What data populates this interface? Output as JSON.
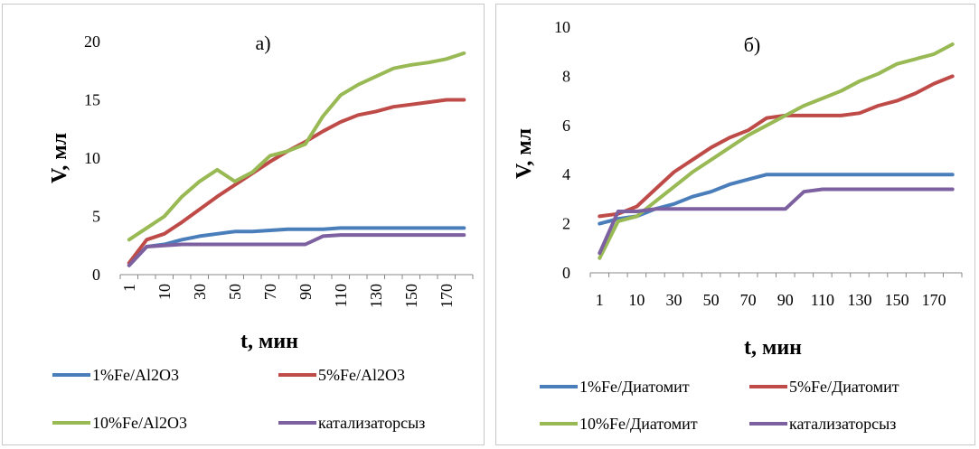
{
  "chart_data": [
    {
      "type": "line",
      "title": "а)",
      "xlabel": "t, мин",
      "ylabel": "V, мл",
      "ylim": [
        0,
        20
      ],
      "yticks": [
        0,
        5,
        10,
        15,
        20
      ],
      "x": [
        1,
        5,
        10,
        20,
        30,
        40,
        50,
        60,
        70,
        80,
        90,
        100,
        110,
        120,
        130,
        140,
        150,
        160,
        170,
        180
      ],
      "xtick_labels": [
        "1",
        "10",
        "30",
        "50",
        "70",
        "90",
        "110",
        "130",
        "150",
        "170"
      ],
      "xtick_orientation": "vertical",
      "legend_position": "bottom",
      "series": [
        {
          "name": "1%Fe/Al2O3",
          "color": "#4a7ebb",
          "values": [
            0.8,
            2.4,
            2.6,
            3.0,
            3.3,
            3.5,
            3.7,
            3.7,
            3.8,
            3.9,
            3.9,
            3.9,
            4.0,
            4.0,
            4.0,
            4.0,
            4.0,
            4.0,
            4.0,
            4.0
          ]
        },
        {
          "name": "5%Fe/Al2O3",
          "color": "#be4b48",
          "values": [
            1.0,
            3.0,
            3.5,
            4.5,
            5.6,
            6.7,
            7.7,
            8.7,
            9.7,
            10.6,
            11.4,
            12.3,
            13.1,
            13.7,
            14.0,
            14.4,
            14.6,
            14.8,
            15.0,
            15.0
          ]
        },
        {
          "name": "10%Fe/Al2O3",
          "color": "#98b954",
          "values": [
            3.0,
            4.0,
            5.0,
            6.7,
            8.0,
            9.0,
            8.0,
            8.8,
            10.2,
            10.6,
            11.2,
            13.6,
            15.4,
            16.3,
            17.0,
            17.7,
            18.0,
            18.2,
            18.5,
            19.0
          ]
        },
        {
          "name": "катализаторсыз",
          "color": "#7d60a0",
          "values": [
            0.8,
            2.4,
            2.5,
            2.6,
            2.6,
            2.6,
            2.6,
            2.6,
            2.6,
            2.6,
            2.6,
            3.3,
            3.4,
            3.4,
            3.4,
            3.4,
            3.4,
            3.4,
            3.4,
            3.4
          ]
        }
      ]
    },
    {
      "type": "line",
      "title": "б)",
      "xlabel": "t, мин",
      "ylabel": "V, мл",
      "ylim": [
        0,
        10
      ],
      "yticks": [
        0,
        2,
        4,
        6,
        8,
        10
      ],
      "x": [
        1,
        5,
        10,
        20,
        30,
        40,
        50,
        60,
        70,
        80,
        90,
        100,
        110,
        120,
        130,
        140,
        150,
        160,
        170,
        180
      ],
      "xtick_labels": [
        "1",
        "10",
        "30",
        "50",
        "70",
        "90",
        "110",
        "130",
        "150",
        "170"
      ],
      "xtick_orientation": "horizontal",
      "legend_position": "bottom",
      "series": [
        {
          "name": "1%Fe/Диатомит",
          "color": "#4a7ebb",
          "values": [
            2.0,
            2.2,
            2.3,
            2.6,
            2.8,
            3.1,
            3.3,
            3.6,
            3.8,
            4.0,
            4.0,
            4.0,
            4.0,
            4.0,
            4.0,
            4.0,
            4.0,
            4.0,
            4.0,
            4.0
          ]
        },
        {
          "name": "5%Fe/Диатомит",
          "color": "#be4b48",
          "values": [
            2.3,
            2.4,
            2.7,
            3.4,
            4.1,
            4.6,
            5.1,
            5.5,
            5.8,
            6.3,
            6.4,
            6.4,
            6.4,
            6.4,
            6.5,
            6.8,
            7.0,
            7.3,
            7.7,
            8.0
          ]
        },
        {
          "name": "10%Fe/Диатомит",
          "color": "#98b954",
          "values": [
            0.6,
            2.1,
            2.3,
            2.9,
            3.5,
            4.1,
            4.6,
            5.1,
            5.6,
            6.0,
            6.4,
            6.8,
            7.1,
            7.4,
            7.8,
            8.1,
            8.5,
            8.7,
            8.9,
            9.3
          ]
        },
        {
          "name": "катализаторсыз",
          "color": "#7d60a0",
          "values": [
            0.8,
            2.5,
            2.5,
            2.6,
            2.6,
            2.6,
            2.6,
            2.6,
            2.6,
            2.6,
            2.6,
            3.3,
            3.4,
            3.4,
            3.4,
            3.4,
            3.4,
            3.4,
            3.4,
            3.4
          ]
        }
      ]
    }
  ]
}
